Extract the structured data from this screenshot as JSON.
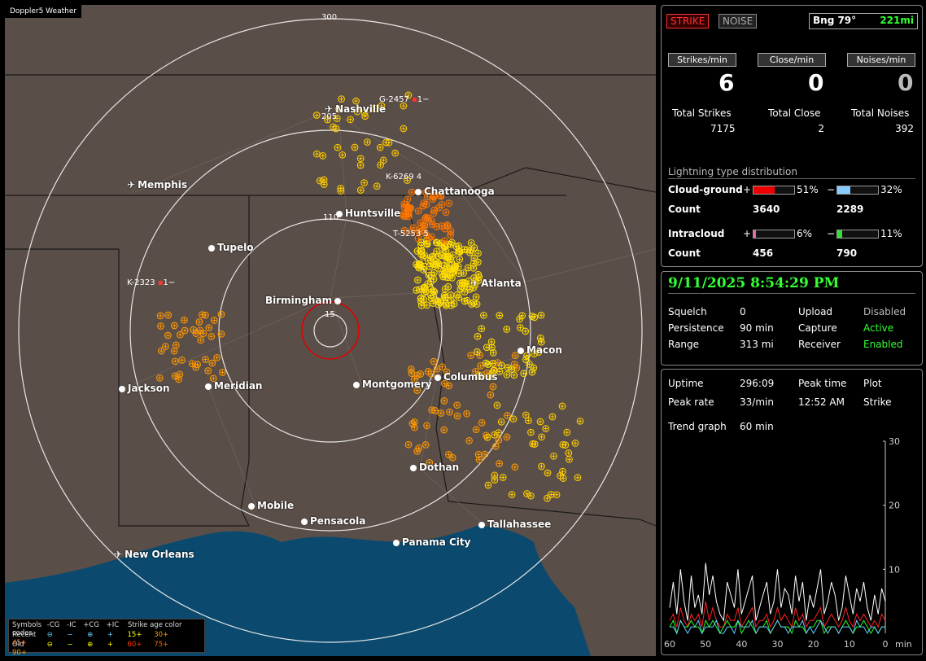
{
  "app": {
    "title": "Doppler5 Weather"
  },
  "map": {
    "ring_labels": [
      "300",
      "205",
      "110",
      "15"
    ],
    "cities": [
      {
        "name": "Nashville",
        "type": "airport"
      },
      {
        "name": "Memphis",
        "type": "airport"
      },
      {
        "name": "Chattanooga",
        "type": "city"
      },
      {
        "name": "Huntsville",
        "type": "city"
      },
      {
        "name": "Tupelo",
        "type": "city"
      },
      {
        "name": "Atlanta",
        "type": "airport"
      },
      {
        "name": "Birmingham",
        "type": "city"
      },
      {
        "name": "Macon",
        "type": "city"
      },
      {
        "name": "Jackson",
        "type": "city"
      },
      {
        "name": "Meridian",
        "type": "city"
      },
      {
        "name": "Montgomery",
        "type": "city"
      },
      {
        "name": "Columbus",
        "type": "city"
      },
      {
        "name": "Dothan",
        "type": "city"
      },
      {
        "name": "Mobile",
        "type": "city"
      },
      {
        "name": "Pensacola",
        "type": "city"
      },
      {
        "name": "Tallahassee",
        "type": "city"
      },
      {
        "name": "Panama City",
        "type": "city"
      },
      {
        "name": "New Orleans",
        "type": "airport"
      }
    ],
    "sensor_tags": [
      "G-2457",
      "1",
      "K-6269",
      "4",
      "T-5253",
      "5",
      "K-2323",
      "1"
    ],
    "legend": {
      "symbols_label": "Symbols",
      "headers": [
        "-CG",
        "-IC",
        "+CG",
        "+IC"
      ],
      "age_label": "Strike age color codes",
      "recent_label": "Recent",
      "old_label": "Old",
      "recent_glyphs": [
        "⊖",
        "−",
        "⊕",
        "+"
      ],
      "old_glyphs": [
        "⊖",
        "−",
        "⊕",
        "+"
      ],
      "recent_ages": [
        "15+",
        "30+",
        "45+"
      ],
      "old_ages": [
        "60+",
        "75+",
        "90+"
      ],
      "recent_colors": [
        "#ffff00",
        "#ff9900",
        "#ff6600"
      ],
      "old_colors": [
        "#ff3300",
        "#ff6600",
        "#ff9900"
      ]
    }
  },
  "status": {
    "strike": "STRIKE",
    "noise": "NOISE",
    "bearing": "Bng 79°",
    "distance": "221mi",
    "strikes_min_label": "Strikes/min",
    "close_min_label": "Close/min",
    "noises_min_label": "Noises/min",
    "strikes_min": "6",
    "close_min": "0",
    "noises_min": "0",
    "total_strikes_label": "Total Strikes",
    "total_close_label": "Total Close",
    "total_noises_label": "Total Noises",
    "total_strikes": "7175",
    "total_close": "2",
    "total_noises": "392",
    "dist_title": "Lightning type distribution",
    "cg_label": "Cloud-ground",
    "ic_label": "Intracloud",
    "count_label": "Count",
    "plus": "+",
    "minus": "−",
    "cg_pos_pct": "51%",
    "cg_neg_pct": "32%",
    "cg_pos_count": "3640",
    "cg_neg_count": "2289",
    "ic_pos_pct": "6%",
    "ic_neg_pct": "11%",
    "ic_pos_count": "456",
    "ic_neg_count": "790",
    "cg_pos_frac": 0.51,
    "cg_neg_frac": 0.32,
    "ic_pos_frac": 0.06,
    "ic_neg_frac": 0.11
  },
  "system": {
    "datetime": "9/11/2025 8:54:29 PM",
    "squelch_label": "Squelch",
    "squelch": "0",
    "upload_label": "Upload",
    "upload": "Disabled",
    "persistence_label": "Persistence",
    "persistence": "90 min",
    "capture_label": "Capture",
    "capture": "Active",
    "range_label": "Range",
    "range": "313 mi",
    "receiver_label": "Receiver",
    "receiver": "Enabled"
  },
  "stats": {
    "uptime_label": "Uptime",
    "uptime": "296:09",
    "peak_time_label": "Peak time",
    "peak_time": "12:52 AM",
    "plot_label": "Plot",
    "plot": "Strike",
    "peak_rate_label": "Peak rate",
    "peak_rate": "33/min",
    "trend_label": "Trend graph",
    "trend": "60 min"
  },
  "chart_data": {
    "type": "line",
    "x_ticks": [
      "60",
      "50",
      "40",
      "30",
      "20",
      "10",
      "0"
    ],
    "x_unit": "min",
    "y_ticks": [
      "30",
      "20",
      "10"
    ],
    "ylim": [
      0,
      30
    ],
    "series": [
      {
        "color": "#ffffff",
        "values": [
          4,
          8,
          3,
          10,
          5,
          2,
          9,
          4,
          6,
          3,
          11,
          6,
          9,
          5,
          3,
          2,
          8,
          6,
          4,
          10,
          3,
          5,
          7,
          9,
          2,
          4,
          6,
          8,
          3,
          5,
          10,
          4,
          7,
          6,
          3,
          9,
          5,
          8,
          2,
          6,
          4,
          7,
          10,
          3,
          5,
          8,
          6,
          2,
          4,
          9,
          6,
          3,
          7,
          5,
          8,
          4,
          2,
          6,
          3,
          7,
          5
        ]
      },
      {
        "color": "#ff2222",
        "values": [
          2,
          3,
          1,
          4,
          2,
          1,
          3,
          2,
          3,
          1,
          5,
          2,
          4,
          2,
          1,
          1,
          3,
          2,
          2,
          4,
          1,
          2,
          3,
          4,
          1,
          2,
          2,
          3,
          1,
          2,
          4,
          2,
          3,
          2,
          1,
          4,
          2,
          3,
          1,
          2,
          2,
          3,
          4,
          1,
          2,
          3,
          2,
          1,
          2,
          4,
          2,
          1,
          3,
          2,
          3,
          2,
          1,
          2,
          1,
          3,
          2
        ]
      },
      {
        "color": "#22ff22",
        "values": [
          1,
          2,
          0,
          2,
          1,
          1,
          2,
          1,
          1,
          0,
          2,
          1,
          2,
          1,
          0,
          1,
          2,
          1,
          1,
          2,
          0,
          1,
          2,
          1,
          0,
          1,
          1,
          2,
          0,
          1,
          2,
          1,
          1,
          1,
          0,
          2,
          1,
          1,
          0,
          1,
          1,
          2,
          2,
          0,
          1,
          1,
          1,
          0,
          1,
          2,
          1,
          0,
          1,
          1,
          2,
          1,
          0,
          1,
          0,
          1,
          1
        ]
      },
      {
        "color": "#66ccff",
        "values": [
          1,
          1,
          0,
          2,
          1,
          0,
          1,
          1,
          2,
          0,
          1,
          1,
          1,
          2,
          0,
          0,
          1,
          1,
          0,
          2,
          1,
          1,
          1,
          2,
          0,
          1,
          1,
          1,
          0,
          1,
          2,
          1,
          1,
          0,
          1,
          1,
          1,
          2,
          0,
          1,
          0,
          1,
          2,
          1,
          0,
          1,
          1,
          0,
          1,
          1,
          1,
          0,
          2,
          1,
          1,
          0,
          1,
          1,
          0,
          1,
          1
        ]
      }
    ]
  }
}
